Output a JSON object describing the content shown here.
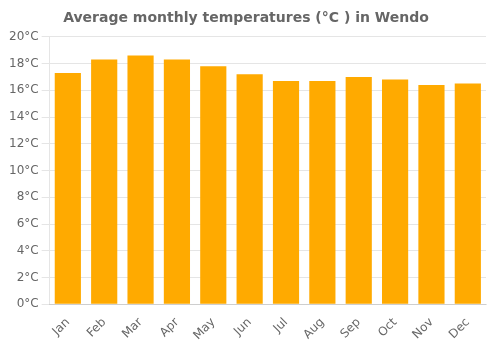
{
  "chart_data": {
    "type": "bar",
    "title": "Average monthly temperatures (°C ) in Wendo",
    "categories": [
      "Jan",
      "Feb",
      "Mar",
      "Apr",
      "May",
      "Jun",
      "Jul",
      "Aug",
      "Sep",
      "Oct",
      "Nov",
      "Dec"
    ],
    "values": [
      17.3,
      18.3,
      18.6,
      18.3,
      17.8,
      17.2,
      16.7,
      16.7,
      17.0,
      16.8,
      16.4,
      16.5
    ],
    "color": "#FFAA00",
    "ylim": [
      0,
      20
    ],
    "yticks": [
      {
        "value": 0,
        "label": "0°C"
      },
      {
        "value": 2,
        "label": "2°C"
      },
      {
        "value": 4,
        "label": "4°C"
      },
      {
        "value": 6,
        "label": "6°C"
      },
      {
        "value": 8,
        "label": "8°C"
      },
      {
        "value": 10,
        "label": "10°C"
      },
      {
        "value": 12,
        "label": "12°C"
      },
      {
        "value": 14,
        "label": "14°C"
      },
      {
        "value": 16,
        "label": "16°C"
      },
      {
        "value": 18,
        "label": "18°C"
      },
      {
        "value": 20,
        "label": "20°C"
      }
    ],
    "grid": true
  }
}
